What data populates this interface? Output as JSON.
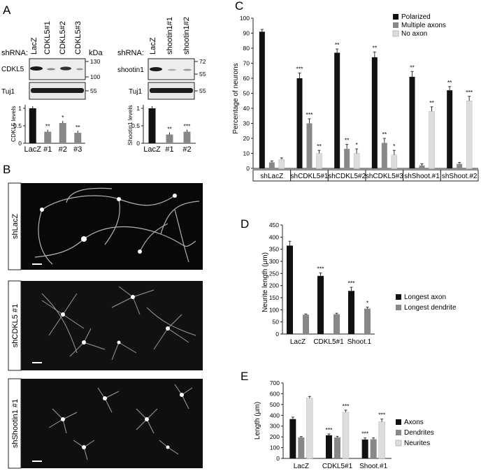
{
  "panels": {
    "a": "A",
    "b": "B",
    "c": "C",
    "d": "D",
    "e": "E"
  },
  "blot_left": {
    "shrna_label": "shRNA:",
    "lanes": [
      "LacZ",
      "CDKL5#1",
      "CDKL5#2",
      "CDKL5#3"
    ],
    "kda_label": "kDa",
    "rows": [
      {
        "label": "CDKL5",
        "markers": [
          "130",
          "100"
        ]
      },
      {
        "label": "Tuj1",
        "markers": [
          "55"
        ]
      }
    ],
    "bar": {
      "ylabel": "CDKL5 levels",
      "ticks": [
        "0",
        "0.5",
        "1"
      ],
      "categories": [
        "LacZ",
        "#1",
        "#2",
        "#3"
      ],
      "values": [
        1.0,
        0.33,
        0.58,
        0.3
      ],
      "stars": [
        "",
        "**",
        "*",
        "**"
      ]
    }
  },
  "blot_right": {
    "shrna_label": "shRNA:",
    "lanes": [
      "LacZ",
      "shootin1#1",
      "shootin1#2"
    ],
    "kda_label": "kDa",
    "rows": [
      {
        "label": "shootin1",
        "markers": [
          "72",
          "55"
        ]
      },
      {
        "label": "Tuj1",
        "markers": [
          "55"
        ]
      }
    ],
    "bar": {
      "ylabel": "Shootin1 levels",
      "ticks": [
        "0",
        "0.5",
        "1"
      ],
      "categories": [
        "LacZ",
        "#1",
        "#2"
      ],
      "values": [
        1.0,
        0.25,
        0.33
      ],
      "stars": [
        "",
        "**",
        "***"
      ]
    }
  },
  "images": [
    {
      "label": "shLacZ"
    },
    {
      "label": "shCDKL5 #1"
    },
    {
      "label": "shShootin1 #1"
    }
  ],
  "chart_data": [
    {
      "type": "bar",
      "panel": "C",
      "ylabel": "Percentage of neurons",
      "ylim": [
        0,
        100
      ],
      "yticks": [
        0,
        10,
        20,
        30,
        40,
        50,
        60,
        70,
        80,
        90,
        100
      ],
      "categories": [
        "shLacZ",
        "shCDKL5#1",
        "shCDKL5#2",
        "shCDKL5#3",
        "shShoot.#1",
        "shShoot.#2"
      ],
      "series": [
        {
          "name": "Polarized",
          "color": "#111111",
          "values": [
            91,
            60,
            77,
            74,
            61,
            52
          ],
          "errors": [
            1.5,
            3.5,
            2.5,
            3.5,
            3.5,
            2.5
          ],
          "stars": [
            "",
            "***",
            "**",
            "**",
            "**",
            "**"
          ]
        },
        {
          "name": "Multiple axons",
          "color": "#888888",
          "values": [
            4,
            30,
            13,
            17,
            2,
            3
          ],
          "errors": [
            1,
            3,
            3,
            3,
            1,
            1
          ],
          "stars": [
            "",
            "***",
            "**",
            "**",
            "",
            ""
          ]
        },
        {
          "name": "No axon",
          "color": "#dddddd",
          "values": [
            6,
            10,
            10,
            9,
            38,
            45
          ],
          "errors": [
            1,
            2,
            3,
            3,
            3,
            3
          ],
          "stars": [
            "",
            "**",
            "*",
            "*",
            "**",
            "***"
          ]
        }
      ],
      "legend": "top-right"
    },
    {
      "type": "bar",
      "panel": "D",
      "ylabel": "Neurite length (μm)",
      "ylim": [
        0,
        450
      ],
      "yticks": [
        0,
        50,
        100,
        150,
        200,
        250,
        300,
        350,
        400,
        450
      ],
      "categories": [
        "LacZ",
        "CDKL5#1",
        "Shoot.1"
      ],
      "series": [
        {
          "name": "Longest axon",
          "color": "#111111",
          "values": [
            365,
            240,
            178
          ],
          "errors": [
            18,
            12,
            15
          ],
          "stars": [
            "",
            "***",
            "***"
          ]
        },
        {
          "name": "Longest dendrite",
          "color": "#888888",
          "values": [
            80,
            82,
            105
          ],
          "errors": [
            3,
            4,
            6
          ],
          "stars": [
            "",
            "",
            "*"
          ]
        }
      ],
      "legend": "right"
    },
    {
      "type": "bar",
      "panel": "E",
      "ylabel": "Length (μm)",
      "ylim": [
        0,
        700
      ],
      "yticks": [
        0,
        100,
        200,
        300,
        400,
        500,
        600,
        700
      ],
      "categories": [
        "LacZ",
        "CDKL5#1",
        "Shoot.#1"
      ],
      "series": [
        {
          "name": "Axons",
          "color": "#111111",
          "values": [
            365,
            215,
            175
          ],
          "errors": [
            18,
            12,
            15
          ],
          "stars": [
            "",
            "***",
            "***"
          ]
        },
        {
          "name": "Dendrites",
          "color": "#888888",
          "values": [
            195,
            195,
            178
          ],
          "errors": [
            8,
            10,
            12
          ],
          "stars": [
            "",
            "",
            ""
          ]
        },
        {
          "name": "Neurites",
          "color": "#dddddd",
          "values": [
            560,
            430,
            340
          ],
          "errors": [
            15,
            18,
            25
          ],
          "stars": [
            "",
            "***",
            "***"
          ]
        }
      ],
      "legend": "right"
    }
  ]
}
